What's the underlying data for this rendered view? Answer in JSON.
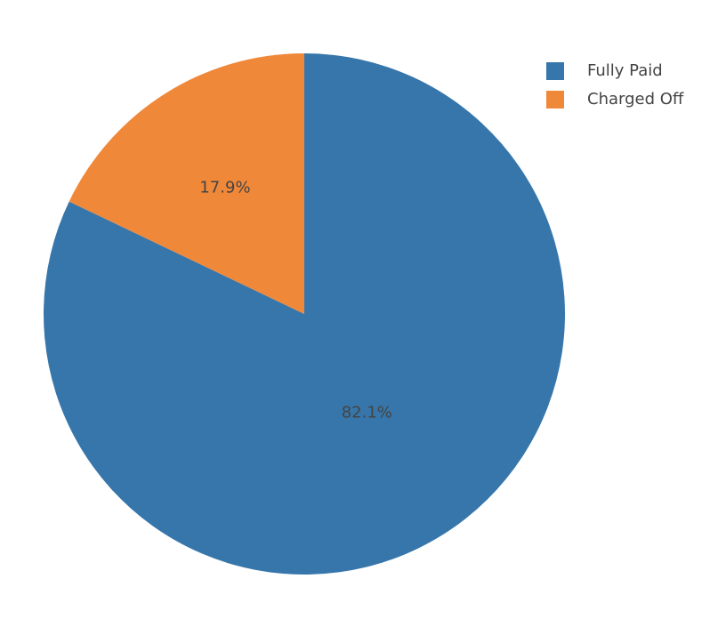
{
  "chart_data": {
    "type": "pie",
    "labels": [
      "Fully Paid",
      "Charged Off"
    ],
    "values": [
      82.1,
      17.9
    ],
    "text_labels": [
      "82.1%",
      "17.9%"
    ],
    "colors": [
      "#3776ab",
      "#f0883a"
    ],
    "label_color": "#444444",
    "legend_position": "top-right",
    "direction": "clockwise",
    "start_angle_deg": 90,
    "sort": "descending"
  }
}
